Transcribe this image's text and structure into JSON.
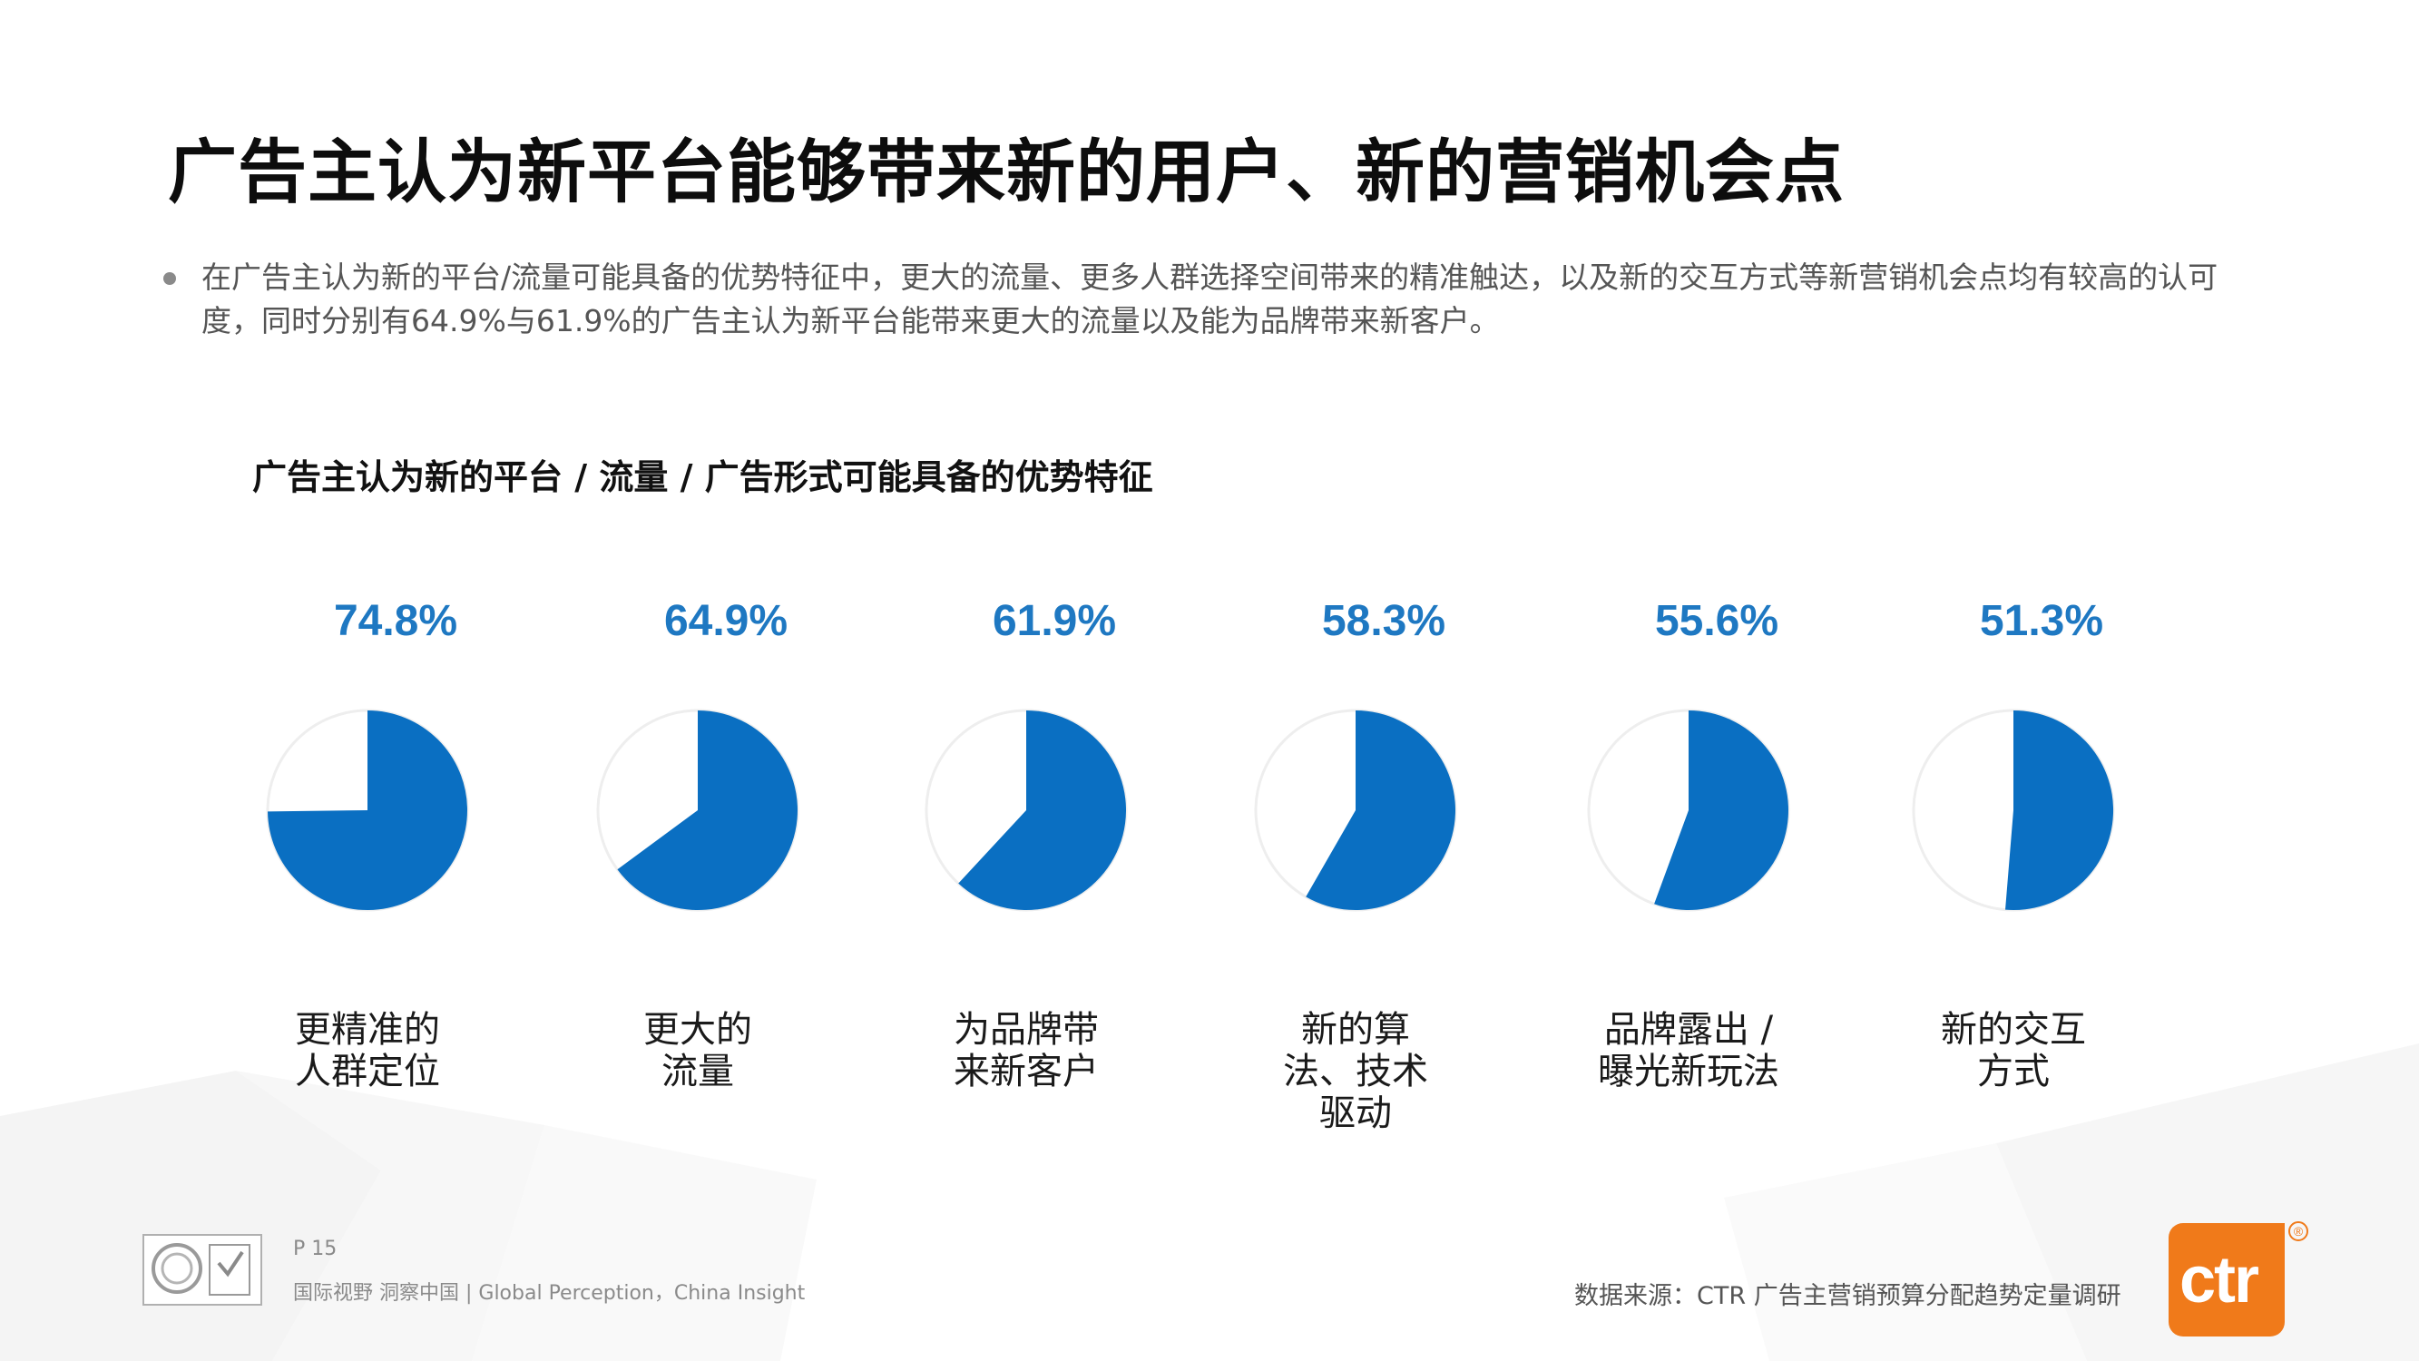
{
  "header": {
    "title": "广告主认为新平台能够带来新的用户、新的营销机会点",
    "bullet": "在广告主认为新的平台/流量可能具备的优势特征中，更大的流量、更多人群选择空间带来的精准触达，以及新的交互方式等新营销机会点均有较高的认可度，同时分别有64.9%与61.9%的广告主认为新平台能带来更大的流量以及能为品牌带来新客户。"
  },
  "chart_data": {
    "type": "pie",
    "title": "广告主认为新的平台 / 流量 / 广告形式可能具备的优势特征",
    "items": [
      {
        "value": 74.8,
        "label": "74.8%",
        "category": [
          "更精准的",
          "人群定位"
        ]
      },
      {
        "value": 64.9,
        "label": "64.9%",
        "category": [
          "更大的",
          "流量"
        ]
      },
      {
        "value": 61.9,
        "label": "61.9%",
        "category": [
          "为品牌带",
          "来新客户"
        ]
      },
      {
        "value": 58.3,
        "label": "58.3%",
        "category": [
          "新的算",
          "法、技术",
          "驱动"
        ]
      },
      {
        "value": 55.6,
        "label": "55.6%",
        "category": [
          "品牌露出 /",
          "曝光新玩法"
        ]
      },
      {
        "value": 51.3,
        "label": "51.3%",
        "category": [
          "新的交互",
          "方式"
        ]
      }
    ],
    "colors": {
      "filled": "#0a6fc2",
      "empty": "#ffffff",
      "outline": "#eeeeee",
      "label": "#1e78c2"
    }
  },
  "footer": {
    "page": "P 15",
    "slogan": "国际视野  洞察中国 |  Global Perception，China Insight",
    "source": "数据来源：CTR 广告主营销预算分配趋势定量调研",
    "logo_text": "ctr",
    "logo_reg": "®"
  }
}
